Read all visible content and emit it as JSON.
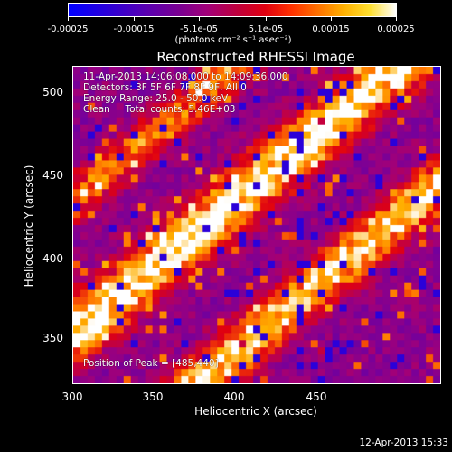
{
  "chart_data": {
    "type": "heatmap",
    "title": "Reconstructed RHESSI Image",
    "xlabel": "Heliocentric X (arcsec)",
    "ylabel": "Heliocentric Y (arcsec)",
    "xlim": [
      300,
      490
    ],
    "ylim": [
      320,
      518
    ],
    "x_ticks": [
      "300",
      "350",
      "400",
      "450"
    ],
    "y_ticks": [
      "350",
      "400",
      "450",
      "500"
    ],
    "colorbar": {
      "ticks": [
        "-0.00025",
        "-0.00015",
        "-5.1e-05",
        "5.1e-05",
        "0.00015",
        "0.00025"
      ],
      "range": [
        -0.00025,
        0.00025
      ],
      "units_label": "(photons cm⁻² s⁻¹ asec⁻²)"
    },
    "annotations": {
      "time_range": "11-Apr-2013 14:06:08.000 to 14:09:36.000",
      "detectors": "Detectors: 3F 5F 6F 7F 8F 9F, All 0",
      "energy_range": "Energy Range: 25.0 - 50.0 keV",
      "counts": "Clean     Total counts: 5.46E+03",
      "peak": "Position of Peak = [485,440]"
    },
    "colormap": [
      "#0000ff",
      "#5a00b0",
      "#a0007a",
      "#e00010",
      "#ff7000",
      "#ffb000",
      "#ffffff"
    ]
  },
  "footer": {
    "timestamp": "12-Apr-2013 15:33"
  }
}
